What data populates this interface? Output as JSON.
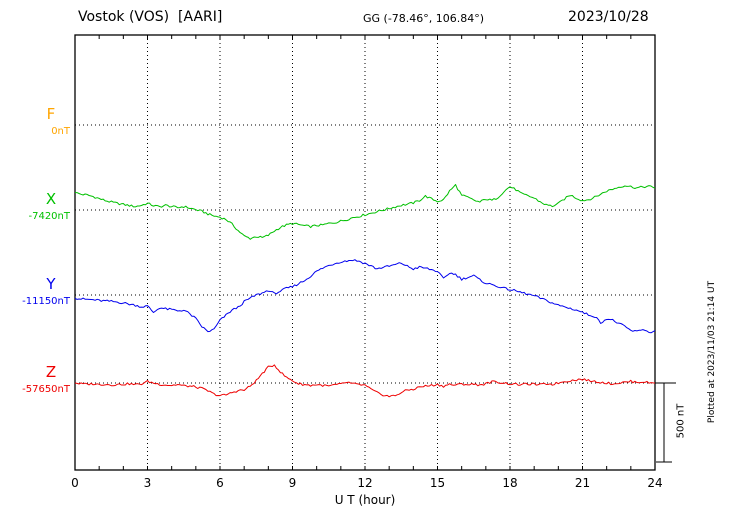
{
  "header": {
    "station": "Vostok (VOS)  [AARI]",
    "coords": "GG (-78.46°, 106.84°)",
    "date": "2023/10/28"
  },
  "footer": {
    "plotted_at": "Plotted at 2023/11/03 21:14 UT"
  },
  "chart_data": {
    "type": "line",
    "title": "Vostok (VOS) [AARI] magnetogram 2023/10/28",
    "x_label": "U T (hour)",
    "x_range": [
      0,
      24
    ],
    "x_step_hours": 0.25,
    "x_ticks": [
      0,
      3,
      6,
      9,
      12,
      15,
      18,
      21,
      24
    ],
    "y_unit": "nT",
    "grid": "dotted",
    "scale_bar": {
      "label": "500 nT",
      "nT": 500
    },
    "series": [
      {
        "name": "F",
        "baseline_label": "0nT",
        "baseline_nT": 0,
        "color": "#FFA500",
        "plotted": false,
        "values": []
      },
      {
        "name": "X",
        "baseline_label": "-7420nT",
        "baseline_nT": -7420,
        "color": "#00C000",
        "plotted": true,
        "values": [
          110,
          100,
          95,
          85,
          72,
          60,
          50,
          42,
          35,
          28,
          22,
          30,
          42,
          28,
          20,
          30,
          22,
          15,
          22,
          12,
          2,
          -8,
          -25,
          -38,
          -45,
          -60,
          -90,
          -130,
          -165,
          -180,
          -168,
          -175,
          -160,
          -132,
          -110,
          -95,
          -85,
          -92,
          -100,
          -105,
          -98,
          -95,
          -85,
          -80,
          -70,
          -60,
          -48,
          -40,
          -30,
          -20,
          -10,
          0,
          10,
          20,
          30,
          36,
          45,
          60,
          88,
          70,
          55,
          65,
          120,
          158,
          92,
          80,
          62,
          50,
          70,
          60,
          80,
          118,
          148,
          128,
          100,
          90,
          75,
          52,
          32,
          25,
          40,
          70,
          95,
          75,
          60,
          66,
          80,
          100,
          120,
          132,
          145,
          155,
          148,
          140,
          146,
          150,
          138
        ]
      },
      {
        "name": "Y",
        "baseline_label": "-11150nT",
        "baseline_nT": -11150,
        "color": "#0000EE",
        "plotted": true,
        "values": [
          -20,
          -25,
          -28,
          -30,
          -35,
          -38,
          -40,
          -45,
          -50,
          -58,
          -65,
          -75,
          -70,
          -110,
          -80,
          -88,
          -92,
          -100,
          -95,
          -120,
          -150,
          -200,
          -232,
          -218,
          -160,
          -128,
          -95,
          -78,
          -42,
          -20,
          0,
          12,
          30,
          8,
          25,
          42,
          52,
          72,
          92,
          120,
          150,
          170,
          186,
          200,
          210,
          216,
          222,
          214,
          200,
          184,
          165,
          176,
          182,
          192,
          202,
          182,
          165,
          176,
          170,
          160,
          150,
          102,
          140,
          130,
          100,
          112,
          122,
          95,
          76,
          65,
          55,
          42,
          35,
          25,
          15,
          5,
          -5,
          -20,
          -35,
          -50,
          -65,
          -75,
          -85,
          -95,
          -110,
          -125,
          -135,
          -175,
          -150,
          -160,
          -180,
          -200,
          -225,
          -232,
          -215,
          -238,
          -225
        ]
      },
      {
        "name": "Z",
        "baseline_label": "-57650nT",
        "baseline_nT": -57650,
        "color": "#EE0000",
        "plotted": true,
        "values": [
          0,
          -5,
          -8,
          -5,
          -10,
          -8,
          -12,
          -10,
          -8,
          -5,
          -10,
          -6,
          10,
          0,
          -8,
          -12,
          -15,
          -10,
          -18,
          -20,
          -25,
          -35,
          -50,
          -70,
          -80,
          -75,
          -60,
          -48,
          -45,
          -20,
          15,
          60,
          100,
          115,
          70,
          35,
          15,
          -5,
          -10,
          -15,
          -10,
          -15,
          -20,
          -12,
          -8,
          5,
          -5,
          -10,
          -15,
          -40,
          -62,
          -75,
          -85,
          -80,
          -60,
          -45,
          -40,
          -25,
          -20,
          -15,
          -10,
          -20,
          -8,
          -15,
          -5,
          -10,
          -8,
          -12,
          -5,
          8,
          5,
          0,
          -5,
          -8,
          -10,
          -6,
          -8,
          -12,
          -5,
          -8,
          0,
          10,
          15,
          20,
          25,
          15,
          10,
          5,
          0,
          -5,
          0,
          5,
          10,
          5,
          8,
          2,
          0
        ]
      }
    ]
  }
}
